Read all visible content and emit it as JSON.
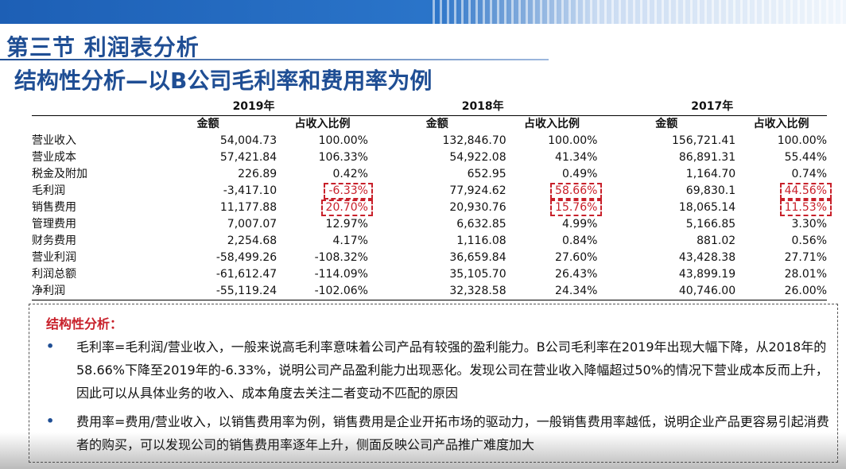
{
  "header": {
    "title": "第三节 利润表分析",
    "subtitle": "结构性分析—以B公司毛利率和费用率为例"
  },
  "table": {
    "years": [
      "2019年",
      "2018年",
      "2017年"
    ],
    "subheaders": [
      "金额",
      "占收入比例"
    ],
    "rows": [
      {
        "label": "营业收入",
        "values": [
          "54,004.73",
          "100.00%",
          "132,846.70",
          "100.00%",
          "156,721.41",
          "100.00%"
        ]
      },
      {
        "label": "营业成本",
        "values": [
          "57,421.84",
          "106.33%",
          "54,922.08",
          "41.34%",
          "86,891.31",
          "55.44%"
        ]
      },
      {
        "label": "税金及附加",
        "values": [
          "226.89",
          "0.42%",
          "652.95",
          "0.49%",
          "1,164.70",
          "0.74%"
        ]
      },
      {
        "label": "毛利润",
        "values": [
          "-3,417.10",
          "-6.33%",
          "77,924.62",
          "58.66%",
          "69,830.1",
          "44.56%"
        ]
      },
      {
        "label": "销售费用",
        "values": [
          "11,177.88",
          "20.70%",
          "20,930.76",
          "15.76%",
          "18,065.14",
          "11.53%"
        ]
      },
      {
        "label": "管理费用",
        "values": [
          "7,007.07",
          "12.97%",
          "6,632.85",
          "4.99%",
          "5,166.85",
          "3.30%"
        ]
      },
      {
        "label": "财务费用",
        "values": [
          "2,254.68",
          "4.17%",
          "1,116.08",
          "0.84%",
          "881.02",
          "0.56%"
        ]
      },
      {
        "label": "营业利润",
        "values": [
          "-58,499.26",
          "-108.32%",
          "36,659.84",
          "27.60%",
          "43,428.38",
          "27.71%"
        ]
      },
      {
        "label": "利润总额",
        "values": [
          "-61,612.47",
          "-114.09%",
          "35,105.70",
          "26.43%",
          "43,899.19",
          "28.01%"
        ]
      },
      {
        "label": "净利润",
        "values": [
          "-55,119.24",
          "-102.06%",
          "32,328.58",
          "24.34%",
          "40,746.00",
          "26.00%"
        ]
      }
    ]
  },
  "analysis": {
    "title": "结构性分析：",
    "bullet_char": "•",
    "points": [
      "毛利率=毛利润/营业收入，一般来说高毛利率意味着公司产品有较强的盈利能力。B公司毛利率在2019年出现大幅下降，从2018年的58.66%下降至2019年的-6.33%，说明公司产品盈利能力出现恶化。发现公司在营业收入降幅超过50%的情况下营业成本反而上升，因此可以从具体业务的收入、成本角度去关注二者变动不匹配的原因",
      "费用率=费用/营业收入，以销售费用率为例，销售费用是企业开拓市场的驱动力，一般销售费用率越低，说明企业产品更容易引起消费者的购买，可以发现公司的销售费用率逐年上升，侧面反映公司产品推广难度加大"
    ]
  },
  "colors": {
    "title_blue": "#1f4e94",
    "highlight_red": "#c8202a"
  }
}
